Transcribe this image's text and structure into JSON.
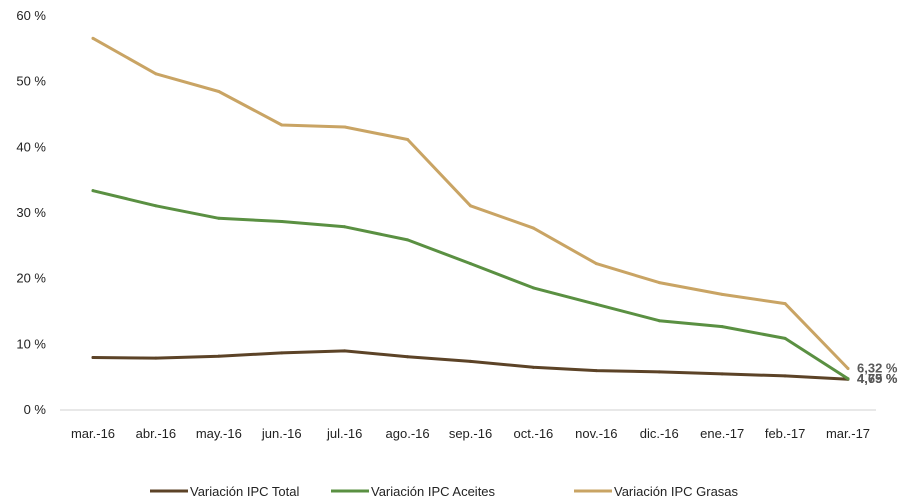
{
  "chart_data": {
    "type": "line",
    "categories": [
      "mar.-16",
      "abr.-16",
      "may.-16",
      "jun.-16",
      "jul.-16",
      "ago.-16",
      "sep.-16",
      "oct.-16",
      "nov.-16",
      "dic.-16",
      "ene.-17",
      "feb.-17",
      "mar.-17"
    ],
    "yticks": [
      "0 %",
      "10 %",
      "20 %",
      "30 %",
      "40 %",
      "50 %",
      "60 %"
    ],
    "ylim": [
      0,
      60
    ],
    "grid": false,
    "legend_position": "bottom",
    "series": [
      {
        "name": "Variación IPC Total",
        "color": "#5C4327",
        "values": [
          8.0,
          7.9,
          8.2,
          8.7,
          9.0,
          8.1,
          7.4,
          6.5,
          6.0,
          5.8,
          5.5,
          5.2,
          4.69
        ],
        "end_label": "4,69 %"
      },
      {
        "name": "Variación IPC Aceites",
        "color": "#5A9042",
        "values": [
          33.4,
          31.1,
          29.2,
          28.7,
          27.9,
          25.9,
          22.3,
          18.6,
          16.1,
          13.6,
          12.7,
          10.9,
          4.75
        ],
        "end_label": "4,75 %"
      },
      {
        "name": "Variación IPC Grasas",
        "color": "#C9A464",
        "values": [
          56.6,
          51.2,
          48.5,
          43.4,
          43.1,
          41.2,
          31.1,
          27.7,
          22.3,
          19.4,
          17.6,
          16.2,
          6.32
        ],
        "end_label": "6,32 %"
      }
    ]
  }
}
